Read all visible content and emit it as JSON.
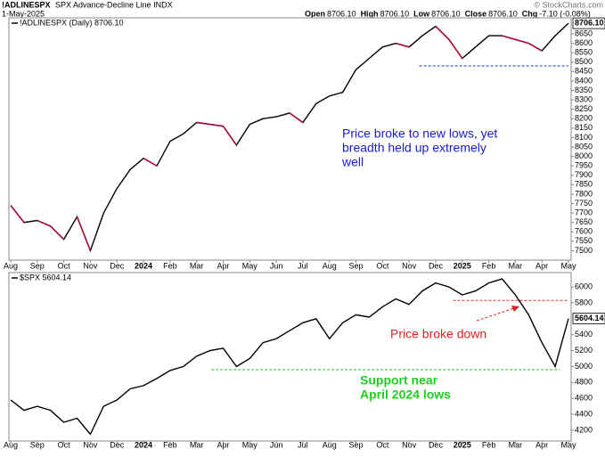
{
  "header": {
    "symbol": "!ADLINESPX",
    "description": "SPX Advance-Decline Line INDX",
    "date": "1-May-2025",
    "quote": [
      {
        "label": "Open",
        "value": "8706.10"
      },
      {
        "label": "High",
        "value": "8706.10"
      },
      {
        "label": "Low",
        "value": "8706.10"
      },
      {
        "label": "Close",
        "value": "8706.10"
      },
      {
        "label": "Chg",
        "value": "-7.10 (-0.08%)"
      }
    ],
    "copyright": "© StockCharts.com"
  },
  "chart_data": [
    {
      "type": "line",
      "categories": [
        "Aug",
        null,
        "Sep",
        null,
        "Oct",
        null,
        "Nov",
        null,
        "Dec",
        null,
        "2024",
        null,
        "Feb",
        null,
        "Mar",
        null,
        "Apr",
        null,
        "May",
        null,
        "Jun",
        null,
        "Jul",
        null,
        "Aug",
        null,
        "Sep",
        null,
        "Oct",
        null,
        "Nov",
        null,
        "Dec",
        null,
        "2025",
        null,
        "Feb",
        null,
        "Mar",
        null,
        "Apr",
        null,
        "May"
      ],
      "series": [
        {
          "name": "!ADLINESPX (Daily) 8706.10",
          "color": "#000000",
          "down_color": "#b0103a",
          "values": [
            7740,
            7650,
            7660,
            7630,
            7560,
            7680,
            7500,
            7700,
            7830,
            7930,
            7990,
            7950,
            8080,
            8120,
            8180,
            8170,
            8160,
            8060,
            8170,
            8200,
            8210,
            8230,
            8180,
            8280,
            8320,
            8340,
            8460,
            8520,
            8580,
            8600,
            8580,
            8640,
            8690,
            8620,
            8520,
            8580,
            8640,
            8640,
            8620,
            8600,
            8560,
            8640,
            8706.1
          ],
          "last_value_label": "8706.10"
        }
      ],
      "ylim": [
        7450,
        8735
      ],
      "yticks": [
        7500,
        7550,
        7600,
        7650,
        7700,
        7750,
        7800,
        7850,
        7900,
        7950,
        8000,
        8050,
        8100,
        8150,
        8200,
        8250,
        8300,
        8350,
        8400,
        8450,
        8500,
        8550,
        8600,
        8650
      ],
      "reference_lines": [
        {
          "value": 8480,
          "color": "#2233cc"
        }
      ],
      "annotations": [
        {
          "lines": [
            "Price broke to new lows, yet",
            "breadth held up extremely",
            "well"
          ],
          "color": "#1a1acc"
        }
      ]
    },
    {
      "type": "line",
      "categories": [
        "Aug",
        null,
        "Sep",
        null,
        "Oct",
        null,
        "Nov",
        null,
        "Dec",
        null,
        "2024",
        null,
        "Feb",
        null,
        "Mar",
        null,
        "Apr",
        null,
        "May",
        null,
        "Jun",
        null,
        "Jul",
        null,
        "Aug",
        null,
        "Sep",
        null,
        "Oct",
        null,
        "Nov",
        null,
        "Dec",
        null,
        "2025",
        null,
        "Feb",
        null,
        "Mar",
        null,
        "Apr",
        null,
        "May"
      ],
      "series": [
        {
          "name": "$SPX 5604.14",
          "color": "#000000",
          "values": [
            4580,
            4450,
            4500,
            4450,
            4300,
            4350,
            4150,
            4500,
            4580,
            4720,
            4760,
            4850,
            4950,
            5000,
            5130,
            5200,
            5230,
            5000,
            5100,
            5300,
            5350,
            5450,
            5550,
            5600,
            5350,
            5550,
            5650,
            5620,
            5750,
            5850,
            5780,
            5950,
            6050,
            6000,
            5900,
            5950,
            6050,
            6100,
            5900,
            5650,
            5300,
            5000,
            5604.14
          ],
          "last_value_label": "5604.14"
        }
      ],
      "ylim": [
        4065,
        6180
      ],
      "yticks": [
        4200,
        4400,
        4600,
        4800,
        5000,
        5200,
        5400,
        5800,
        6000
      ],
      "reference_lines": [
        {
          "value": 5830,
          "color": "#e03030"
        },
        {
          "value": 4960,
          "color": "#22bb22"
        }
      ],
      "annotations": [
        {
          "lines": [
            "Price broke down"
          ],
          "color": "#e02020"
        },
        {
          "lines": [
            "Support near",
            "April 2024 lows"
          ],
          "color": "#22cc22"
        }
      ]
    }
  ]
}
